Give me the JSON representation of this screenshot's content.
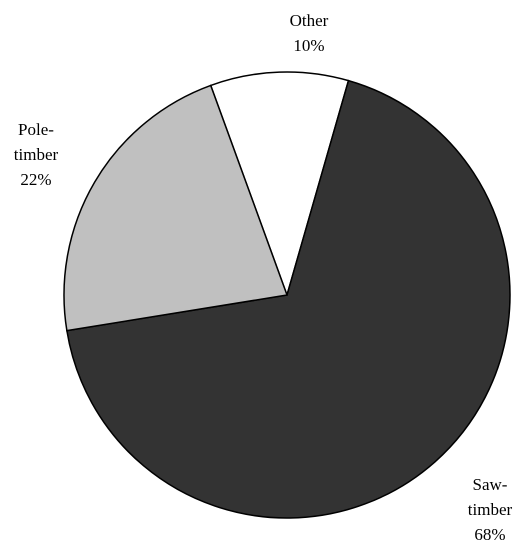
{
  "chart_data": {
    "type": "pie",
    "categories": [
      "Other",
      "Saw-timber",
      "Pole-timber"
    ],
    "values": [
      10,
      68,
      22
    ],
    "value_labels": [
      "10%",
      "68%",
      "22%"
    ],
    "colors": [
      "#ffffff",
      "#333333",
      "#c0c0c0"
    ]
  }
}
